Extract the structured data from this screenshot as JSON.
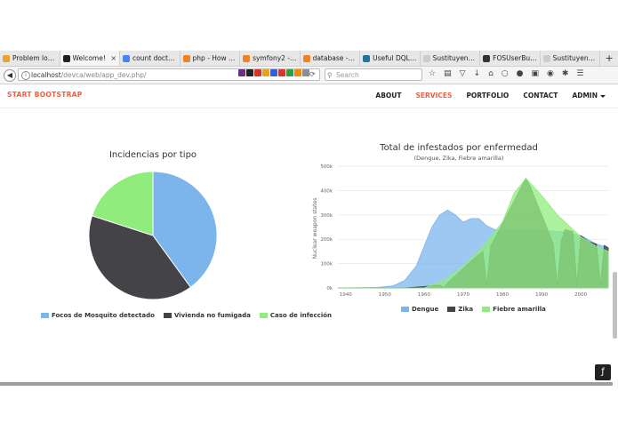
{
  "tabs": [
    {
      "label": "Problem loa...",
      "color": "#f0a030"
    },
    {
      "label": "Welcome!",
      "color": "#222222",
      "active": true
    },
    {
      "label": "count doctrin...",
      "color": "#4285f4"
    },
    {
      "label": "php - How w...",
      "color": "#f48024"
    },
    {
      "label": "symfony2 - ...",
      "color": "#f48024"
    },
    {
      "label": "database - S...",
      "color": "#f48024"
    },
    {
      "label": "Useful DQL ...",
      "color": "#21759b"
    },
    {
      "label": "Sustituyendo las ...",
      "color": "#cccccc"
    },
    {
      "label": "FOSUserBun...",
      "color": "#333333"
    },
    {
      "label": "Sustituyendo los ...",
      "color": "#cccccc"
    }
  ],
  "browser": {
    "url_host": "localhost",
    "url_path": "/devca/web/app_dev.php/",
    "search_placeholder": "Search"
  },
  "site": {
    "brand": "START BOOTSTRAP",
    "menu": [
      "ABOUT",
      "SERVICES",
      "PORTFOLIO",
      "CONTACT",
      "ADMIN"
    ]
  },
  "pie_chart": {
    "type": "pie",
    "title": "Incidencias por tipo",
    "slices": [
      {
        "name": "Focos de Mosquito detectado",
        "value": 40,
        "color": "#7cb5ec"
      },
      {
        "name": "Vivienda no fumigada",
        "value": 40,
        "color": "#434348"
      },
      {
        "name": "Caso de infección",
        "value": 20,
        "color": "#90ed7d"
      }
    ]
  },
  "chart_data": {
    "type": "area",
    "title": "Total de infestados por enfermedad",
    "subtitle": "(Dengue, Zika, Fiebre amarilla)",
    "ylabel": "Nuclear weapon states",
    "ylim": [
      0,
      500000
    ],
    "xlim": [
      1938,
      2007
    ],
    "yticks": [
      "0k",
      "100k",
      "200k",
      "300k",
      "400k",
      "500k"
    ],
    "xticks": [
      "1940",
      "1950",
      "1960",
      "1970",
      "1980",
      "1990",
      "2000"
    ],
    "series": [
      {
        "name": "Dengue",
        "color": "#7cb5ec",
        "x": [
          1938,
          1948,
          1952,
          1955,
          1958,
          1960,
          1962,
          1964,
          1966,
          1968,
          1970,
          1972,
          1974,
          1976,
          1978,
          1980,
          1984,
          1988,
          1992,
          1996,
          2000,
          2004,
          2007
        ],
        "y": [
          0,
          2000,
          8000,
          30000,
          90000,
          170000,
          250000,
          300000,
          320000,
          300000,
          270000,
          285000,
          285000,
          255000,
          240000,
          235000,
          240000,
          240000,
          235000,
          230000,
          215000,
          180000,
          165000
        ]
      },
      {
        "name": "Zika",
        "color": "#434348",
        "x": [
          1938,
          1955,
          1960,
          1964,
          1965,
          1966,
          1972,
          1975,
          1976,
          1977,
          1985,
          1986,
          1987,
          1993,
          1994,
          1995,
          1996,
          1998,
          1999,
          2000,
          2002,
          2004,
          2005,
          2006,
          2007
        ],
        "y": [
          0,
          0,
          6000,
          12000,
          1000,
          20000,
          110000,
          150000,
          10000,
          170000,
          420000,
          450000,
          420000,
          180000,
          5000,
          190000,
          240000,
          230000,
          10000,
          215000,
          190000,
          180000,
          10000,
          175000,
          165000
        ]
      },
      {
        "name": "Fiebre amarilla",
        "color": "#90ed7d",
        "x": [
          1938,
          1960,
          1965,
          1970,
          1975,
          1980,
          1983,
          1986,
          1990,
          1994,
          2000,
          2004,
          2007
        ],
        "y": [
          0,
          0,
          30000,
          90000,
          170000,
          270000,
          390000,
          450000,
          380000,
          300000,
          210000,
          170000,
          150000
        ]
      }
    ],
    "legend_position": "bottom"
  }
}
